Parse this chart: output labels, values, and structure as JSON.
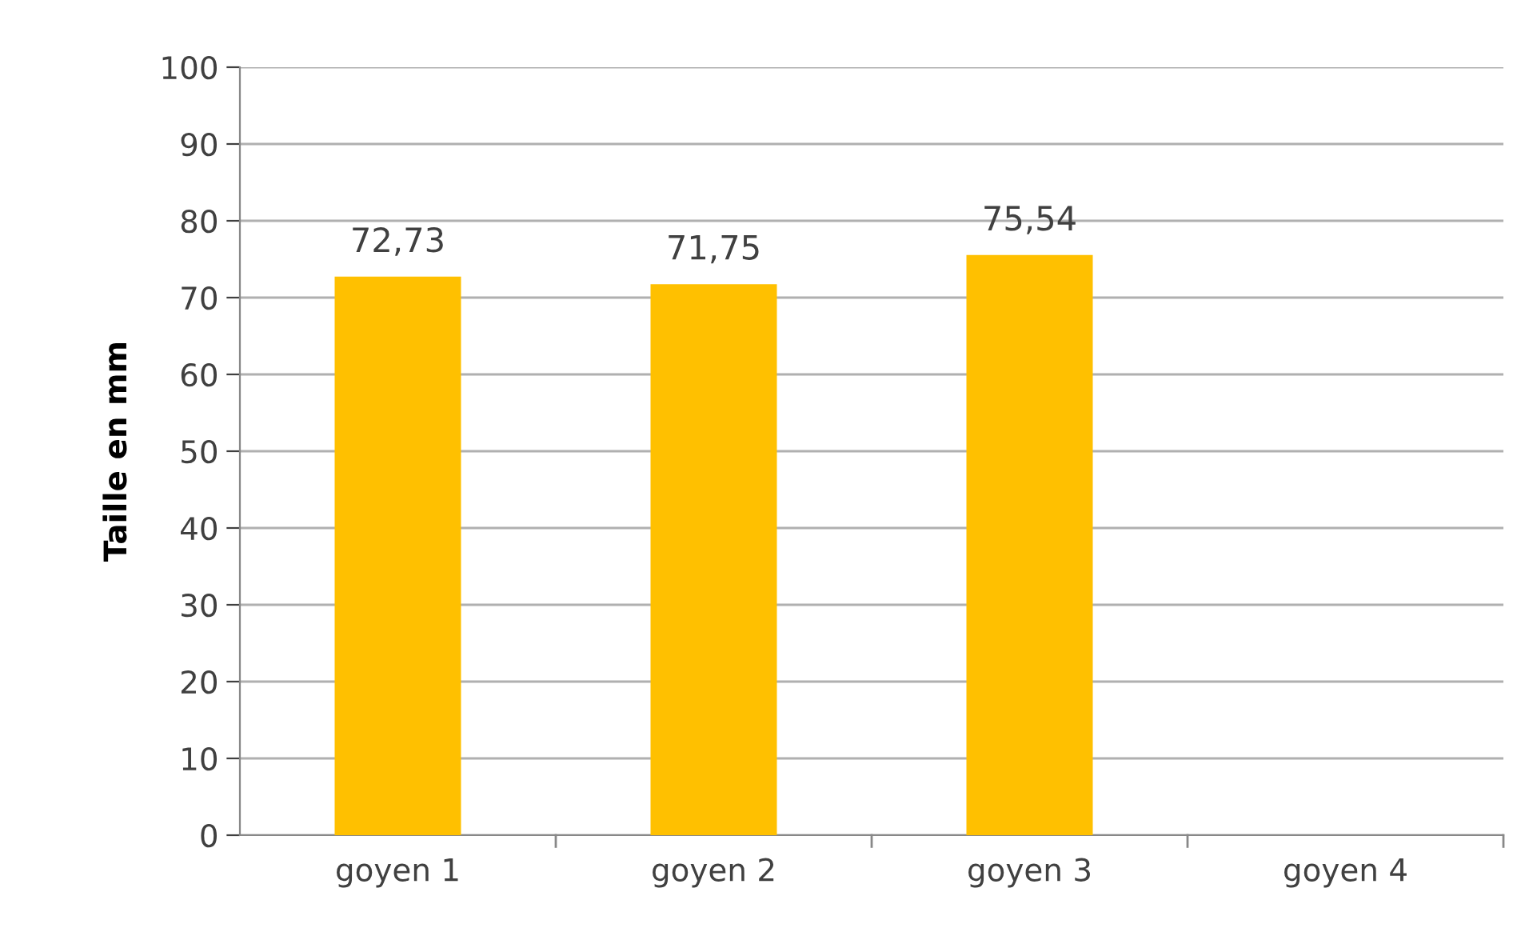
{
  "chart_data": {
    "type": "bar",
    "ylabel": "Taille en mm",
    "categories": [
      "goyen 1",
      "goyen 2",
      "goyen 3",
      "goyen 4"
    ],
    "values": [
      72.73,
      71.75,
      75.54,
      null
    ],
    "value_labels": [
      "72,73",
      "71,75",
      "75,54",
      null
    ],
    "color": "#ffc000",
    "ylim": [
      0,
      100
    ],
    "yticks": [
      0,
      10,
      20,
      30,
      40,
      50,
      60,
      70,
      80,
      90,
      100
    ],
    "grid": "y"
  }
}
